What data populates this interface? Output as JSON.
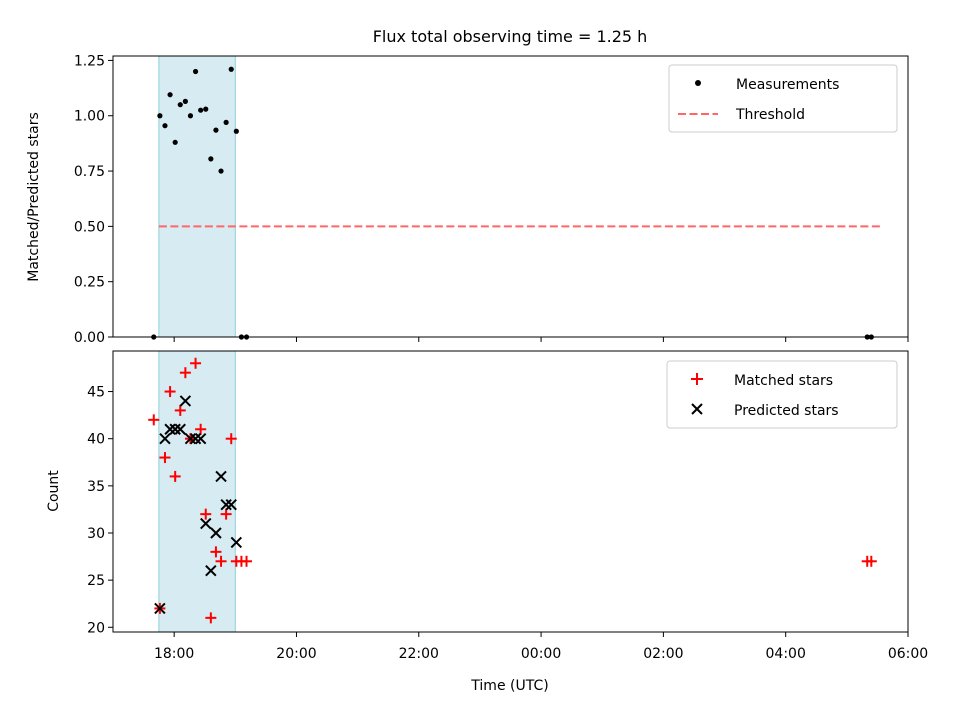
{
  "colors": {
    "shade": "#add8e6",
    "threshold": "#ff6666",
    "measurement": "#000000",
    "matched": "#ff0000",
    "predicted": "#000000"
  },
  "chart_data": [
    {
      "type": "scatter",
      "title": "Flux total observing time = 1.25 h",
      "xlabel": "",
      "ylabel": "Matched/Predicted stars",
      "x_range_hours": [
        17.0,
        30.0
      ],
      "ylim": [
        0,
        1.27
      ],
      "yticks": [
        "0.00",
        "0.25",
        "0.50",
        "0.75",
        "1.00",
        "1.25"
      ],
      "yticks_values": [
        0,
        0.25,
        0.5,
        0.75,
        1.0,
        1.25
      ],
      "shaded_span": [
        "17:45",
        "19:00"
      ],
      "legend_position": "top-right",
      "legend": [
        "Measurements",
        "Threshold"
      ],
      "threshold": {
        "name": "Threshold",
        "y": 0.5,
        "x_range": [
          "17:45",
          "05:33"
        ],
        "style": "dashed"
      },
      "series": [
        {
          "name": "Measurements",
          "marker": "dot",
          "points": [
            [
              "17:40",
              0.0
            ],
            [
              "17:46",
              1.0
            ],
            [
              "17:51",
              0.955
            ],
            [
              "17:56",
              1.095
            ],
            [
              "18:01",
              0.88
            ],
            [
              "18:06",
              1.05
            ],
            [
              "18:11",
              1.065
            ],
            [
              "18:16",
              1.0
            ],
            [
              "18:21",
              1.2
            ],
            [
              "18:26",
              1.025
            ],
            [
              "18:31",
              1.03
            ],
            [
              "18:36",
              0.805
            ],
            [
              "18:41",
              0.935
            ],
            [
              "18:46",
              0.75
            ],
            [
              "18:51",
              0.97
            ],
            [
              "18:56",
              1.21
            ],
            [
              "19:01",
              0.93
            ],
            [
              "19:06",
              0.0
            ],
            [
              "19:11",
              0.0
            ],
            [
              "05:20",
              0.0
            ],
            [
              "05:24",
              0.0
            ]
          ]
        }
      ]
    },
    {
      "type": "scatter",
      "title": "",
      "xlabel": "Time (UTC)",
      "ylabel": "Count",
      "x_range_hours": [
        17.0,
        30.0
      ],
      "ylim": [
        19.5,
        49.3
      ],
      "yticks": [
        "20",
        "25",
        "30",
        "35",
        "40",
        "45"
      ],
      "yticks_values": [
        20,
        25,
        30,
        35,
        40,
        45
      ],
      "xticks": [
        "18:00",
        "20:00",
        "22:00",
        "00:00",
        "02:00",
        "04:00",
        "06:00"
      ],
      "xticks_hours": [
        18,
        20,
        22,
        24,
        26,
        28,
        30
      ],
      "shaded_span": [
        "17:45",
        "19:00"
      ],
      "legend_position": "top-right",
      "legend": [
        "Matched stars",
        "Predicted stars"
      ],
      "series": [
        {
          "name": "Matched stars",
          "marker": "plus",
          "points": [
            [
              "17:40",
              42
            ],
            [
              "17:46",
              22
            ],
            [
              "17:51",
              38
            ],
            [
              "17:56",
              45
            ],
            [
              "18:01",
              36
            ],
            [
              "18:06",
              43
            ],
            [
              "18:11",
              47
            ],
            [
              "18:16",
              40
            ],
            [
              "18:21",
              48
            ],
            [
              "18:26",
              41
            ],
            [
              "18:31",
              32
            ],
            [
              "18:36",
              21
            ],
            [
              "18:41",
              28
            ],
            [
              "18:46",
              27
            ],
            [
              "18:51",
              32
            ],
            [
              "18:56",
              40
            ],
            [
              "19:01",
              27
            ],
            [
              "19:06",
              27
            ],
            [
              "19:11",
              27
            ],
            [
              "05:20",
              27
            ],
            [
              "05:24",
              27
            ]
          ]
        },
        {
          "name": "Predicted stars",
          "marker": "x",
          "points": [
            [
              "17:46",
              22
            ],
            [
              "17:51",
              40
            ],
            [
              "17:56",
              41
            ],
            [
              "18:01",
              41
            ],
            [
              "18:06",
              41
            ],
            [
              "18:11",
              44
            ],
            [
              "18:16",
              40
            ],
            [
              "18:21",
              40
            ],
            [
              "18:26",
              40
            ],
            [
              "18:31",
              31
            ],
            [
              "18:36",
              26
            ],
            [
              "18:41",
              30
            ],
            [
              "18:46",
              36
            ],
            [
              "18:51",
              33
            ],
            [
              "18:56",
              33
            ],
            [
              "19:01",
              29
            ]
          ]
        }
      ]
    }
  ]
}
